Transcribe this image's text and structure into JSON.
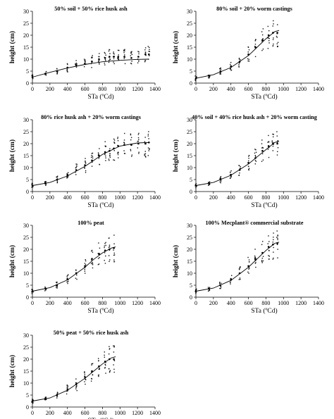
{
  "chart_data": [
    {
      "type": "scatter",
      "title": "50% soil + 50% rice husk ash",
      "xlabel": "STa (ºCd)",
      "ylabel": "height (cm)",
      "xlim": [
        0,
        1400
      ],
      "ylim": [
        0,
        30
      ],
      "xticks": [
        0,
        200,
        400,
        600,
        800,
        1000,
        1200,
        1400
      ],
      "yticks": [
        0,
        5,
        10,
        15,
        20,
        25,
        30
      ],
      "grid": false,
      "legend": "none",
      "series": [
        {
          "points": [
            [
              0,
              2.5
            ],
            [
              150,
              4
            ],
            [
              280,
              5
            ],
            [
              400,
              6.5
            ],
            [
              500,
              7.5
            ],
            [
              600,
              8
            ],
            [
              680,
              9
            ],
            [
              760,
              10
            ],
            [
              830,
              10.5
            ],
            [
              880,
              11
            ],
            [
              930,
              11
            ],
            [
              980,
              11
            ],
            [
              1050,
              11
            ],
            [
              1130,
              10.5
            ],
            [
              1210,
              11
            ],
            [
              1290,
              12
            ],
            [
              1330,
              12
            ]
          ],
          "trend": [
            [
              0,
              2.5
            ],
            [
              200,
              4.5
            ],
            [
              400,
              6.3
            ],
            [
              600,
              7.8
            ],
            [
              800,
              8.9
            ],
            [
              1000,
              9.5
            ],
            [
              1200,
              9.9
            ],
            [
              1330,
              10
            ]
          ]
        }
      ]
    },
    {
      "type": "scatter",
      "title": "80% soil + 20% worm castings",
      "xlabel": "STa (ºCd)",
      "ylabel": "height (cm)",
      "xlim": [
        0,
        1400
      ],
      "ylim": [
        0,
        30
      ],
      "xticks": [
        0,
        200,
        400,
        600,
        800,
        1000,
        1200,
        1400
      ],
      "yticks": [
        0,
        5,
        10,
        15,
        20,
        25,
        30
      ],
      "grid": false,
      "legend": "none",
      "series": [
        {
          "points": [
            [
              0,
              2
            ],
            [
              150,
              3
            ],
            [
              280,
              5
            ],
            [
              400,
              7
            ],
            [
              500,
              9
            ],
            [
              600,
              12
            ],
            [
              680,
              15
            ],
            [
              760,
              18
            ],
            [
              830,
              20
            ],
            [
              880,
              21
            ],
            [
              930,
              21
            ]
          ],
          "trend": [
            [
              0,
              2
            ],
            [
              200,
              3.5
            ],
            [
              400,
              6.5
            ],
            [
              600,
              11.5
            ],
            [
              700,
              15
            ],
            [
              800,
              18.5
            ],
            [
              900,
              21.5
            ],
            [
              950,
              22
            ]
          ]
        }
      ]
    },
    {
      "type": "scatter",
      "title": "80% rice husk ash + 20% worm castings",
      "xlabel": "STa (ºCd)",
      "ylabel": "height (cm)",
      "xlim": [
        0,
        1400
      ],
      "ylim": [
        0,
        30
      ],
      "xticks": [
        0,
        200,
        400,
        600,
        800,
        1000,
        1200,
        1400
      ],
      "yticks": [
        0,
        5,
        10,
        15,
        20,
        25,
        30
      ],
      "grid": false,
      "legend": "none",
      "series": [
        {
          "points": [
            [
              0,
              2.5
            ],
            [
              150,
              3.5
            ],
            [
              280,
              5
            ],
            [
              400,
              7
            ],
            [
              500,
              9
            ],
            [
              600,
              11
            ],
            [
              680,
              13
            ],
            [
              760,
              15
            ],
            [
              830,
              16.5
            ],
            [
              880,
              17
            ],
            [
              930,
              18
            ],
            [
              980,
              19
            ],
            [
              1050,
              19.5
            ],
            [
              1130,
              19.5
            ],
            [
              1210,
              20
            ],
            [
              1290,
              20
            ],
            [
              1330,
              20.5
            ]
          ],
          "trend": [
            [
              0,
              2.5
            ],
            [
              200,
              3.8
            ],
            [
              400,
              6.5
            ],
            [
              600,
              10.5
            ],
            [
              800,
              15.5
            ],
            [
              1000,
              19
            ],
            [
              1200,
              20.3
            ],
            [
              1330,
              20.5
            ]
          ]
        }
      ]
    },
    {
      "type": "scatter",
      "title": "40% soil + 40% rice husk ash + 20% worm casting",
      "xlabel": "STa (ºCd)",
      "ylabel": "height (cm)",
      "xlim": [
        0,
        1400
      ],
      "ylim": [
        0,
        30
      ],
      "xticks": [
        0,
        200,
        400,
        600,
        800,
        1000,
        1200,
        1400
      ],
      "yticks": [
        0,
        5,
        10,
        15,
        20,
        25,
        30
      ],
      "grid": false,
      "legend": "none",
      "series": [
        {
          "points": [
            [
              0,
              2.5
            ],
            [
              150,
              3.5
            ],
            [
              280,
              5
            ],
            [
              400,
              7
            ],
            [
              500,
              9
            ],
            [
              600,
              12
            ],
            [
              680,
              14
            ],
            [
              760,
              17
            ],
            [
              830,
              19
            ],
            [
              880,
              20
            ],
            [
              930,
              20
            ]
          ],
          "trend": [
            [
              0,
              2.5
            ],
            [
              200,
              3.8
            ],
            [
              400,
              6.8
            ],
            [
              600,
              11.5
            ],
            [
              700,
              14.5
            ],
            [
              800,
              17.5
            ],
            [
              900,
              20.5
            ],
            [
              950,
              21
            ]
          ]
        }
      ]
    },
    {
      "type": "scatter",
      "title": "100% peat",
      "xlabel": "STa (ºCd)",
      "ylabel": "height (cm)",
      "xlim": [
        0,
        1400
      ],
      "ylim": [
        0,
        30
      ],
      "xticks": [
        0,
        200,
        400,
        600,
        800,
        1000,
        1200,
        1400
      ],
      "yticks": [
        0,
        5,
        10,
        15,
        20,
        25,
        30
      ],
      "grid": false,
      "legend": "none",
      "series": [
        {
          "points": [
            [
              0,
              2.5
            ],
            [
              150,
              3.5
            ],
            [
              280,
              5
            ],
            [
              400,
              7.5
            ],
            [
              500,
              10
            ],
            [
              600,
              13
            ],
            [
              680,
              16
            ],
            [
              760,
              18
            ],
            [
              830,
              19.5
            ],
            [
              880,
              20
            ],
            [
              930,
              20.5
            ]
          ],
          "trend": [
            [
              0,
              2.5
            ],
            [
              200,
              4
            ],
            [
              400,
              7.2
            ],
            [
              600,
              12.5
            ],
            [
              700,
              15.8
            ],
            [
              800,
              18.5
            ],
            [
              900,
              20.5
            ],
            [
              950,
              21
            ]
          ]
        }
      ]
    },
    {
      "type": "scatter",
      "title": "100% Mecplant® commercial substrate",
      "xlabel": "STa (ºCd)",
      "ylabel": "height (cm)",
      "xlim": [
        0,
        1400
      ],
      "ylim": [
        0,
        30
      ],
      "xticks": [
        0,
        200,
        400,
        600,
        800,
        1000,
        1200,
        1400
      ],
      "yticks": [
        0,
        5,
        10,
        15,
        20,
        25,
        30
      ],
      "grid": false,
      "legend": "none",
      "series": [
        {
          "points": [
            [
              0,
              2.5
            ],
            [
              150,
              3.5
            ],
            [
              280,
              5
            ],
            [
              400,
              7.5
            ],
            [
              500,
              10
            ],
            [
              600,
              13
            ],
            [
              680,
              16
            ],
            [
              760,
              18.5
            ],
            [
              830,
              21
            ],
            [
              880,
              22
            ],
            [
              930,
              22.5
            ]
          ],
          "trend": [
            [
              0,
              2.5
            ],
            [
              200,
              3.8
            ],
            [
              400,
              7
            ],
            [
              600,
              12.5
            ],
            [
              700,
              16
            ],
            [
              800,
              19.5
            ],
            [
              900,
              22.5
            ],
            [
              950,
              23
            ]
          ]
        }
      ]
    },
    {
      "type": "scatter",
      "title": "50% peat + 50% rice husk ash",
      "xlabel": "STa (ºCd)",
      "ylabel": "height (cm)",
      "xlim": [
        0,
        1400
      ],
      "ylim": [
        0,
        30
      ],
      "xticks": [
        0,
        200,
        400,
        600,
        800,
        1000,
        1200,
        1400
      ],
      "yticks": [
        0,
        5,
        10,
        15,
        20,
        25,
        30
      ],
      "grid": false,
      "legend": "none",
      "series": [
        {
          "points": [
            [
              0,
              2.5
            ],
            [
              150,
              3.5
            ],
            [
              280,
              5
            ],
            [
              400,
              7.5
            ],
            [
              500,
              9.5
            ],
            [
              600,
              12.5
            ],
            [
              680,
              15
            ],
            [
              760,
              17
            ],
            [
              830,
              19
            ],
            [
              880,
              20
            ],
            [
              930,
              20
            ]
          ],
          "trend": [
            [
              0,
              2.5
            ],
            [
              200,
              3.8
            ],
            [
              400,
              7
            ],
            [
              600,
              12
            ],
            [
              700,
              15
            ],
            [
              800,
              18
            ],
            [
              900,
              20.5
            ],
            [
              950,
              21
            ]
          ]
        }
      ]
    }
  ]
}
